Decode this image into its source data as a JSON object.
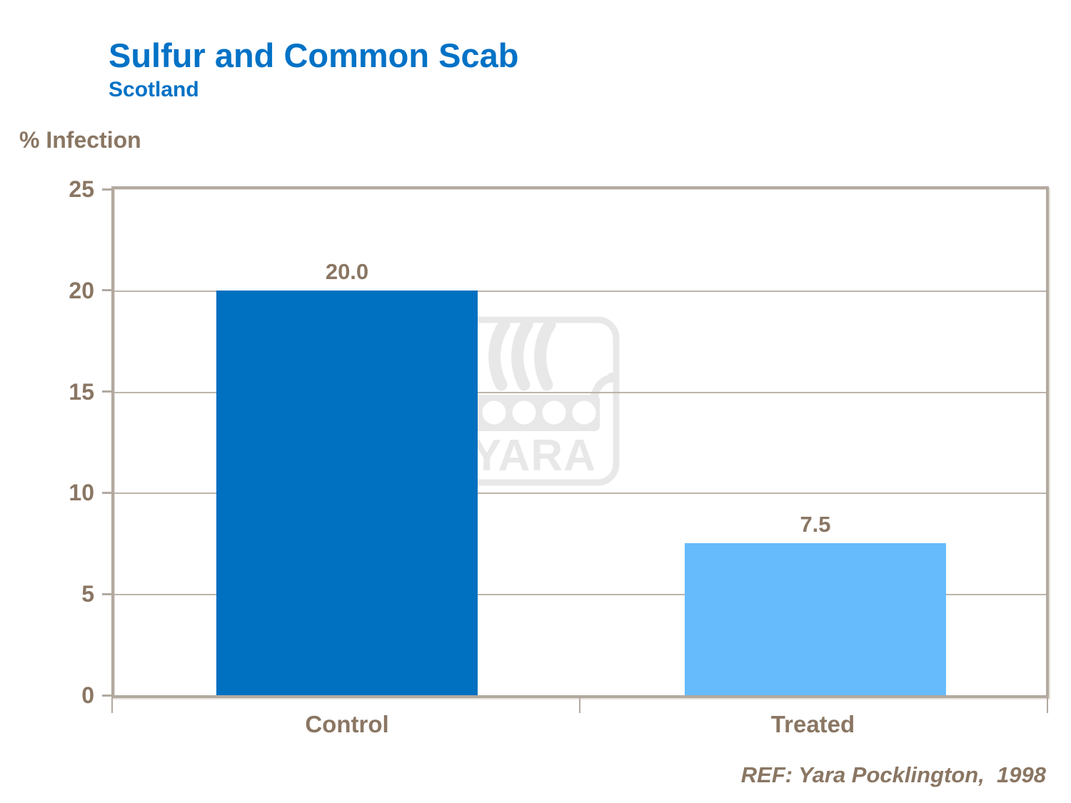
{
  "slide": {
    "title": "Sulfur and Common Scab",
    "subtitle": "Scotland",
    "reference": "REF: Yara Pocklington,  1998"
  },
  "watermark": {
    "text": "YARA",
    "icon": "yara-viking-ship-logo"
  },
  "colors": {
    "title_blue": "#0072C6",
    "text_brown": "#8A7663",
    "control_bar": "#0070C0",
    "treated_bar": "#66BBFC",
    "frame_tan": "#B2A9A0",
    "gridline_tan": "#BDB4A9",
    "watermark_gray": "#E8E8E8",
    "background": "#FFFFFF"
  },
  "chart_data": {
    "type": "bar",
    "title": "Sulfur and Common Scab",
    "subtitle": "Scotland",
    "categories": [
      "Control",
      "Treated"
    ],
    "values": [
      20.0,
      7.5
    ],
    "value_labels": [
      "20.0",
      "7.5"
    ],
    "bar_colors": [
      "#0070C0",
      "#66BBFC"
    ],
    "xlabel": "",
    "ylabel": "% Infection",
    "ylim": [
      0,
      25
    ],
    "yticks": [
      0,
      5,
      10,
      15,
      20,
      25
    ],
    "grid": true,
    "legend": false,
    "annotation": "REF: Yara Pocklington,  1998"
  }
}
